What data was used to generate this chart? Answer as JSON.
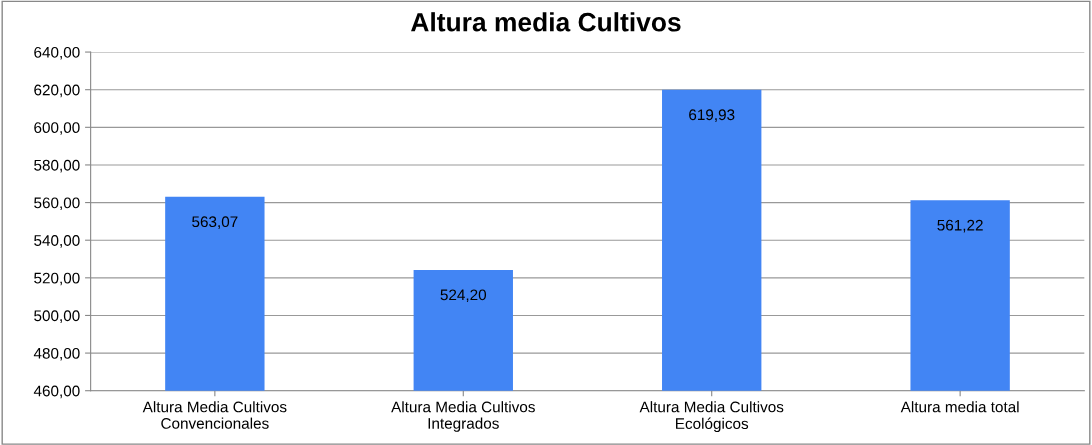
{
  "chart_data": {
    "type": "bar",
    "title": "Altura media Cultivos",
    "categories": [
      "Altura Media Cultivos\nConvencionales",
      "Altura Media Cultivos\nIntegrados",
      "Altura Media Cultivos\nEcológicos",
      "Altura media total"
    ],
    "values": [
      563.07,
      524.2,
      619.93,
      561.22
    ],
    "value_labels": [
      "563,07",
      "524,20",
      "619,93",
      "561,22"
    ],
    "color": "#4285f4",
    "ylim": [
      460,
      640
    ],
    "yticks": [
      {
        "value": 460,
        "label": "460,00"
      },
      {
        "value": 480,
        "label": "480,00"
      },
      {
        "value": 500,
        "label": "500,00"
      },
      {
        "value": 520,
        "label": "520,00"
      },
      {
        "value": 540,
        "label": "540,00"
      },
      {
        "value": 560,
        "label": "560,00"
      },
      {
        "value": 580,
        "label": "580,00"
      },
      {
        "value": 600,
        "label": "600,00"
      },
      {
        "value": 620,
        "label": "620,00"
      },
      {
        "value": 640,
        "label": "640,00"
      }
    ],
    "grid": "y",
    "legend": false
  }
}
